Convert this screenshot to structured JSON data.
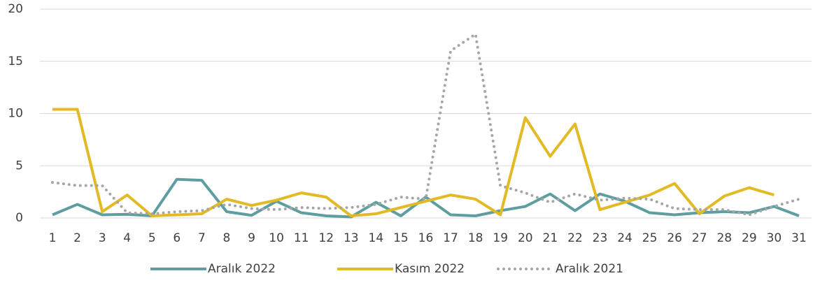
{
  "chart_data": {
    "type": "line",
    "categories": [
      "1",
      "2",
      "3",
      "4",
      "5",
      "6",
      "7",
      "8",
      "9",
      "10",
      "11",
      "12",
      "13",
      "14",
      "15",
      "16",
      "17",
      "18",
      "19",
      "20",
      "21",
      "22",
      "23",
      "24",
      "25",
      "26",
      "27",
      "28",
      "29",
      "30",
      "31"
    ],
    "series": [
      {
        "name": "Aralık 2022",
        "color": "#5f9ea0",
        "style": "solid",
        "values": [
          0.3,
          1.3,
          0.3,
          0.35,
          0.2,
          3.7,
          3.6,
          0.6,
          0.25,
          1.6,
          0.5,
          0.2,
          0.1,
          1.5,
          0.2,
          2.0,
          0.3,
          0.2,
          0.7,
          1.1,
          2.3,
          0.7,
          2.3,
          1.6,
          0.5,
          0.3,
          0.5,
          0.6,
          0.5,
          1.1,
          0.2
        ]
      },
      {
        "name": "Kasım 2022",
        "color": "#e3b924",
        "style": "solid",
        "values": [
          10.4,
          10.4,
          0.6,
          2.2,
          0.2,
          0.3,
          0.4,
          1.8,
          1.2,
          1.7,
          2.4,
          2.0,
          0.2,
          0.4,
          1.0,
          1.6,
          2.2,
          1.8,
          0.3,
          9.6,
          5.9,
          9.0,
          0.8,
          1.5,
          2.2,
          3.3,
          0.4,
          2.1,
          2.9,
          2.2,
          null
        ]
      },
      {
        "name": "Aralık 2021",
        "color": "#a6a6a6",
        "style": "dotted",
        "values": [
          3.4,
          3.1,
          3.1,
          0.5,
          0.4,
          0.6,
          0.7,
          1.3,
          0.9,
          0.8,
          1.0,
          0.9,
          1.0,
          1.3,
          2.0,
          1.8,
          16,
          17.6,
          3.1,
          2.4,
          1.5,
          2.3,
          1.7,
          1.9,
          1.8,
          0.9,
          0.8,
          0.8,
          0.3,
          1.1,
          1.8
        ]
      }
    ],
    "ylim": [
      0,
      20
    ],
    "yticks": [
      0,
      5,
      10,
      15,
      20
    ],
    "grid": true,
    "legend": "bottom"
  }
}
